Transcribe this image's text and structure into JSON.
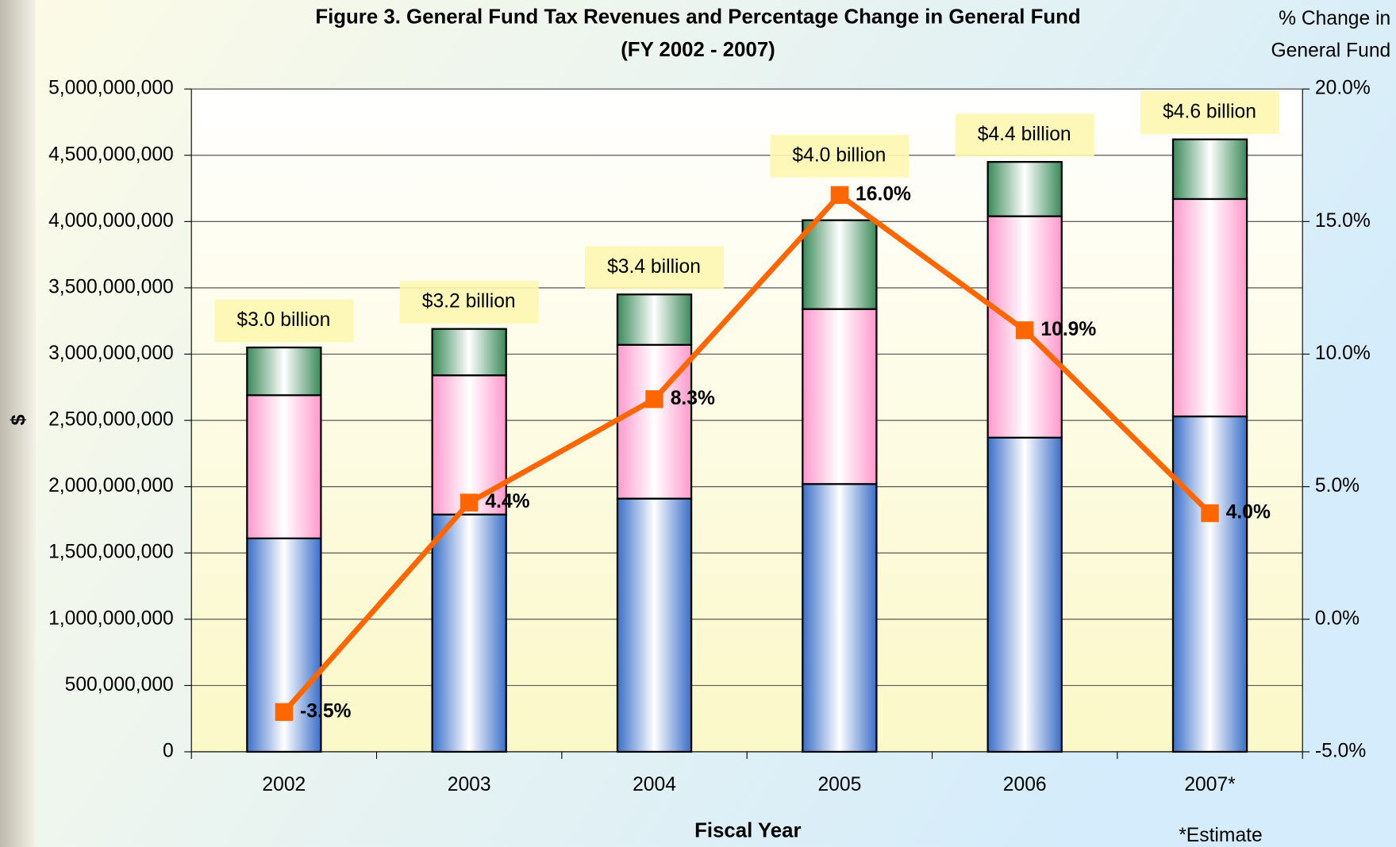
{
  "chart_data": {
    "type": "bar",
    "title": "Figure 3.  General Fund Tax Revenues and Percentage Change in General Fund",
    "subtitle": "(FY 2002 - 2007)",
    "x_label": "Fiscal Year",
    "y_label": "$",
    "y2_label": [
      "% Change in",
      "General Fund"
    ],
    "note": "*Estimate",
    "stacked": true,
    "categories": [
      "2002",
      "2003",
      "2004",
      "2005",
      "2006",
      "2007*"
    ],
    "series": [
      {
        "color": "#3a6fc8",
        "values": [
          1610000000,
          1790000000,
          1910000000,
          2020000000,
          2370000000,
          2530000000
        ]
      },
      {
        "color": "#ff99cc",
        "values": [
          1080000000,
          1050000000,
          1160000000,
          1320000000,
          1670000000,
          1640000000
        ]
      },
      {
        "color": "#3a8a5a",
        "values": [
          360000000,
          350000000,
          380000000,
          670000000,
          410000000,
          450000000
        ]
      },
      {
        "type": "line",
        "axis": "y2",
        "color": "#ff6600",
        "values": [
          -3.5,
          4.4,
          8.3,
          16.0,
          10.9,
          4.0
        ],
        "value_labels": [
          "-3.5%",
          "4.4%",
          "8.3%",
          "16.0%",
          "10.9%",
          "4.0%"
        ]
      }
    ],
    "annotations": [
      "$3.0 billion",
      "$3.2 billion",
      "$3.4 billion",
      "$4.0 billion",
      "$4.4 billion",
      "$4.6 billion"
    ],
    "ylim": [
      0,
      5000000000
    ],
    "yticks": [
      0,
      {
        "value": 500000000,
        "label": "500,000,000"
      },
      {
        "value": 1000000000,
        "label": "1,000,000,000"
      },
      {
        "value": 1500000000,
        "label": "1,500,000,000"
      },
      {
        "value": 2000000000,
        "label": "2,000,000,000"
      },
      {
        "value": 2500000000,
        "label": "2,500,000,000"
      },
      {
        "value": 3000000000,
        "label": "3,000,000,000"
      },
      {
        "value": 3500000000,
        "label": "3,500,000,000"
      },
      {
        "value": 4000000000,
        "label": "4,000,000,000"
      },
      {
        "value": 4500000000,
        "label": "4,500,000,000"
      },
      {
        "value": 5000000000,
        "label": "5,000,000,000"
      }
    ],
    "y2lim": [
      -5,
      20
    ],
    "y2ticks": [
      {
        "value": -5,
        "label": "-5.0%"
      },
      {
        "value": 0,
        "label": "0.0%"
      },
      {
        "value": 5,
        "label": "5.0%"
      },
      {
        "value": 10,
        "label": "10.0%"
      },
      {
        "value": 15,
        "label": "15.0%"
      },
      {
        "value": 20,
        "label": "20.0%"
      }
    ],
    "grid": true
  }
}
